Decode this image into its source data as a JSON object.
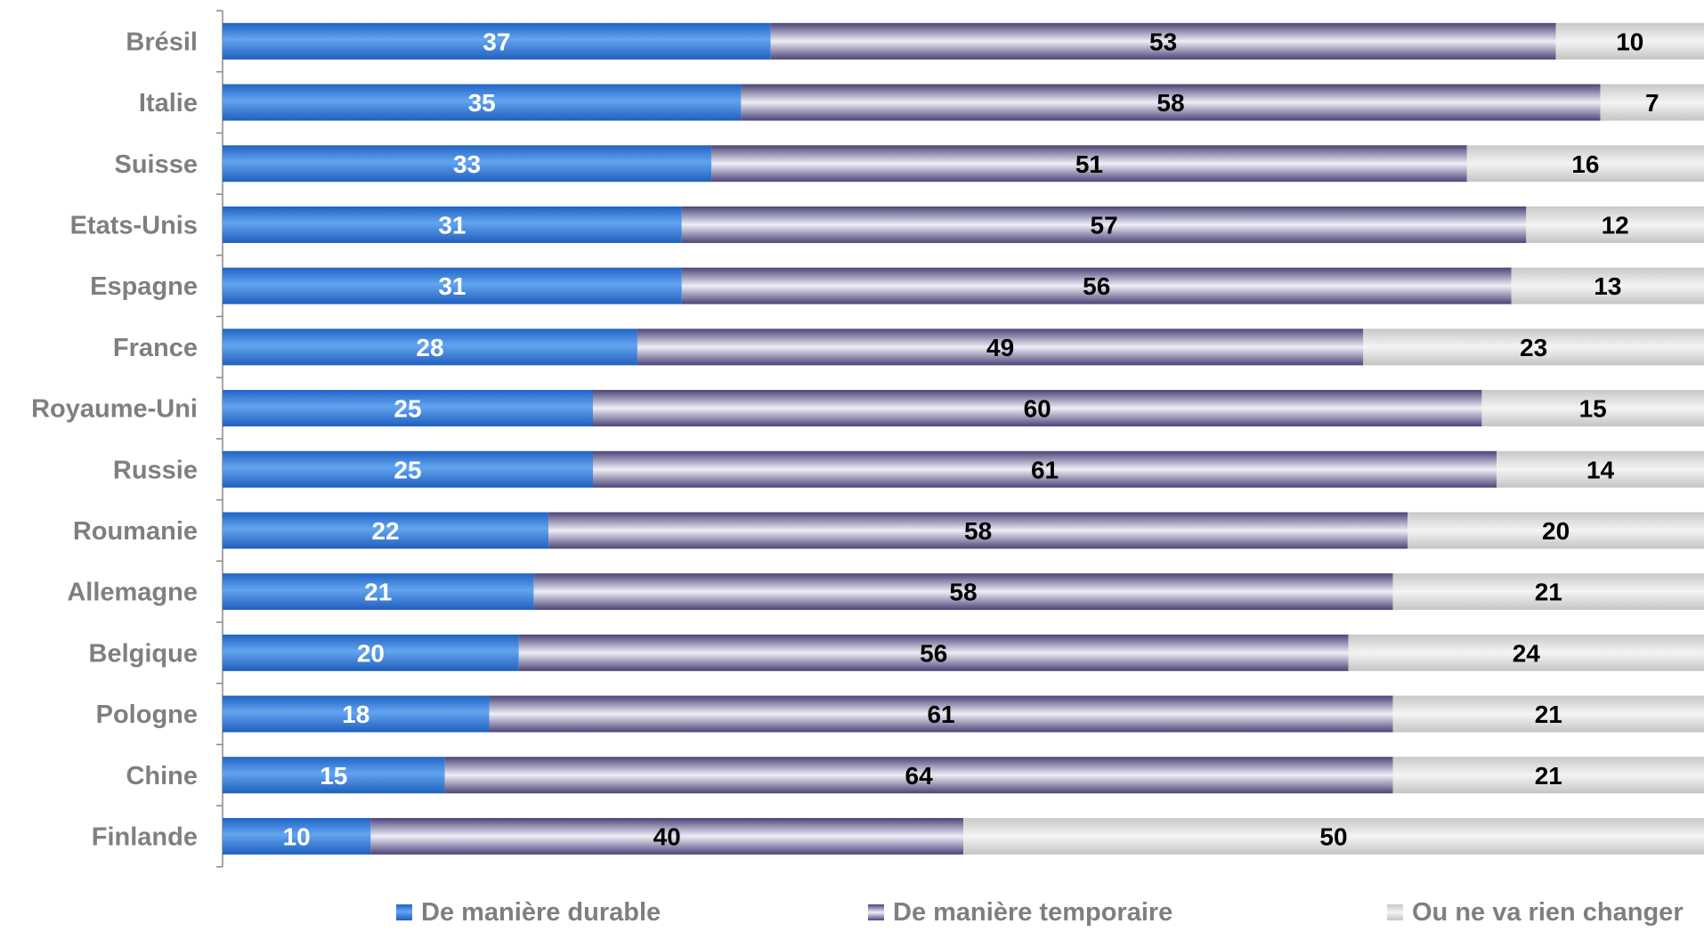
{
  "chart_data": {
    "type": "bar",
    "orientation": "horizontal",
    "stacked": true,
    "percent_stacked": true,
    "categories": [
      "Brésil",
      "Italie",
      "Suisse",
      "Etats-Unis",
      "Espagne",
      "France",
      "Royaume-Uni",
      "Russie",
      "Roumanie",
      "Allemagne",
      "Belgique",
      "Pologne",
      "Chine",
      "Finlande"
    ],
    "series": [
      {
        "name": "De manière durable",
        "color": "#2f7bd9",
        "label_color": "#ffffff",
        "values": [
          37,
          35,
          33,
          31,
          31,
          28,
          25,
          25,
          22,
          21,
          20,
          18,
          15,
          10
        ]
      },
      {
        "name": "De manière temporaire",
        "color": "#9a94b8",
        "label_color": "#000000",
        "values": [
          53,
          58,
          51,
          57,
          56,
          49,
          60,
          61,
          58,
          58,
          56,
          61,
          64,
          40
        ]
      },
      {
        "name": "Ou ne va rien changer",
        "color": "#d9d9d9",
        "label_color": "#000000",
        "values": [
          10,
          7,
          16,
          12,
          13,
          23,
          15,
          14,
          20,
          21,
          24,
          21,
          21,
          50
        ]
      }
    ],
    "legend_position": "bottom",
    "grid": false,
    "data_labels": true
  }
}
